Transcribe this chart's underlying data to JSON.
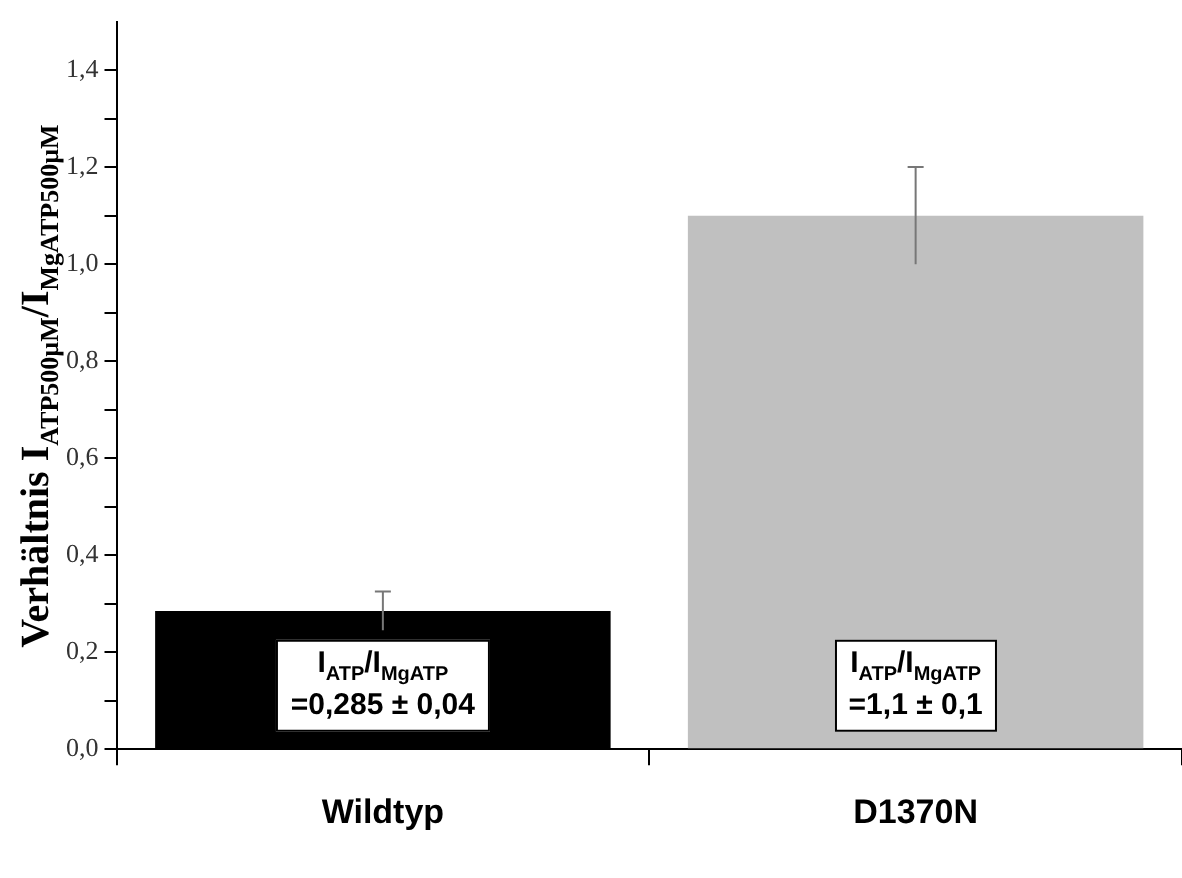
{
  "chart_data": {
    "type": "bar",
    "ylabel": "Verhältnis I$_{ATP500µM}$/I$_{MgATP500µM}$",
    "categories": [
      "Wildtyp",
      "D1370N"
    ],
    "values": [
      0.285,
      1.1
    ],
    "errors": [
      0.04,
      0.1
    ],
    "colors": [
      "#000000",
      "#c0c0c0"
    ],
    "ylim": [
      0,
      1.5
    ],
    "yticks": [
      {
        "value": 0,
        "label": "0,0"
      },
      {
        "value": 0.1,
        "label": null
      },
      {
        "value": 0.2,
        "label": "0,2"
      },
      {
        "value": 0.3,
        "label": null
      },
      {
        "value": 0.4,
        "label": "0,4"
      },
      {
        "value": 0.5,
        "label": null
      },
      {
        "value": 0.6,
        "label": "0,6"
      },
      {
        "value": 0.7,
        "label": null
      },
      {
        "value": 0.8,
        "label": "0,8"
      },
      {
        "value": 0.9,
        "label": null
      },
      {
        "value": 1,
        "label": "1,0"
      },
      {
        "value": 1.1,
        "label": null
      },
      {
        "value": 1.2,
        "label": "1,2"
      },
      {
        "value": 1.3,
        "label": null
      },
      {
        "value": 1.4,
        "label": "1,4"
      }
    ],
    "annotations": [
      "I$_{ATP}$/I$_{MgATP}$\n=0,285 ± 0,04",
      "I$_{ATP}$/I$_{MgATP}$\n=1,1 ± 0,1"
    ],
    "grid": false,
    "legend": false
  }
}
